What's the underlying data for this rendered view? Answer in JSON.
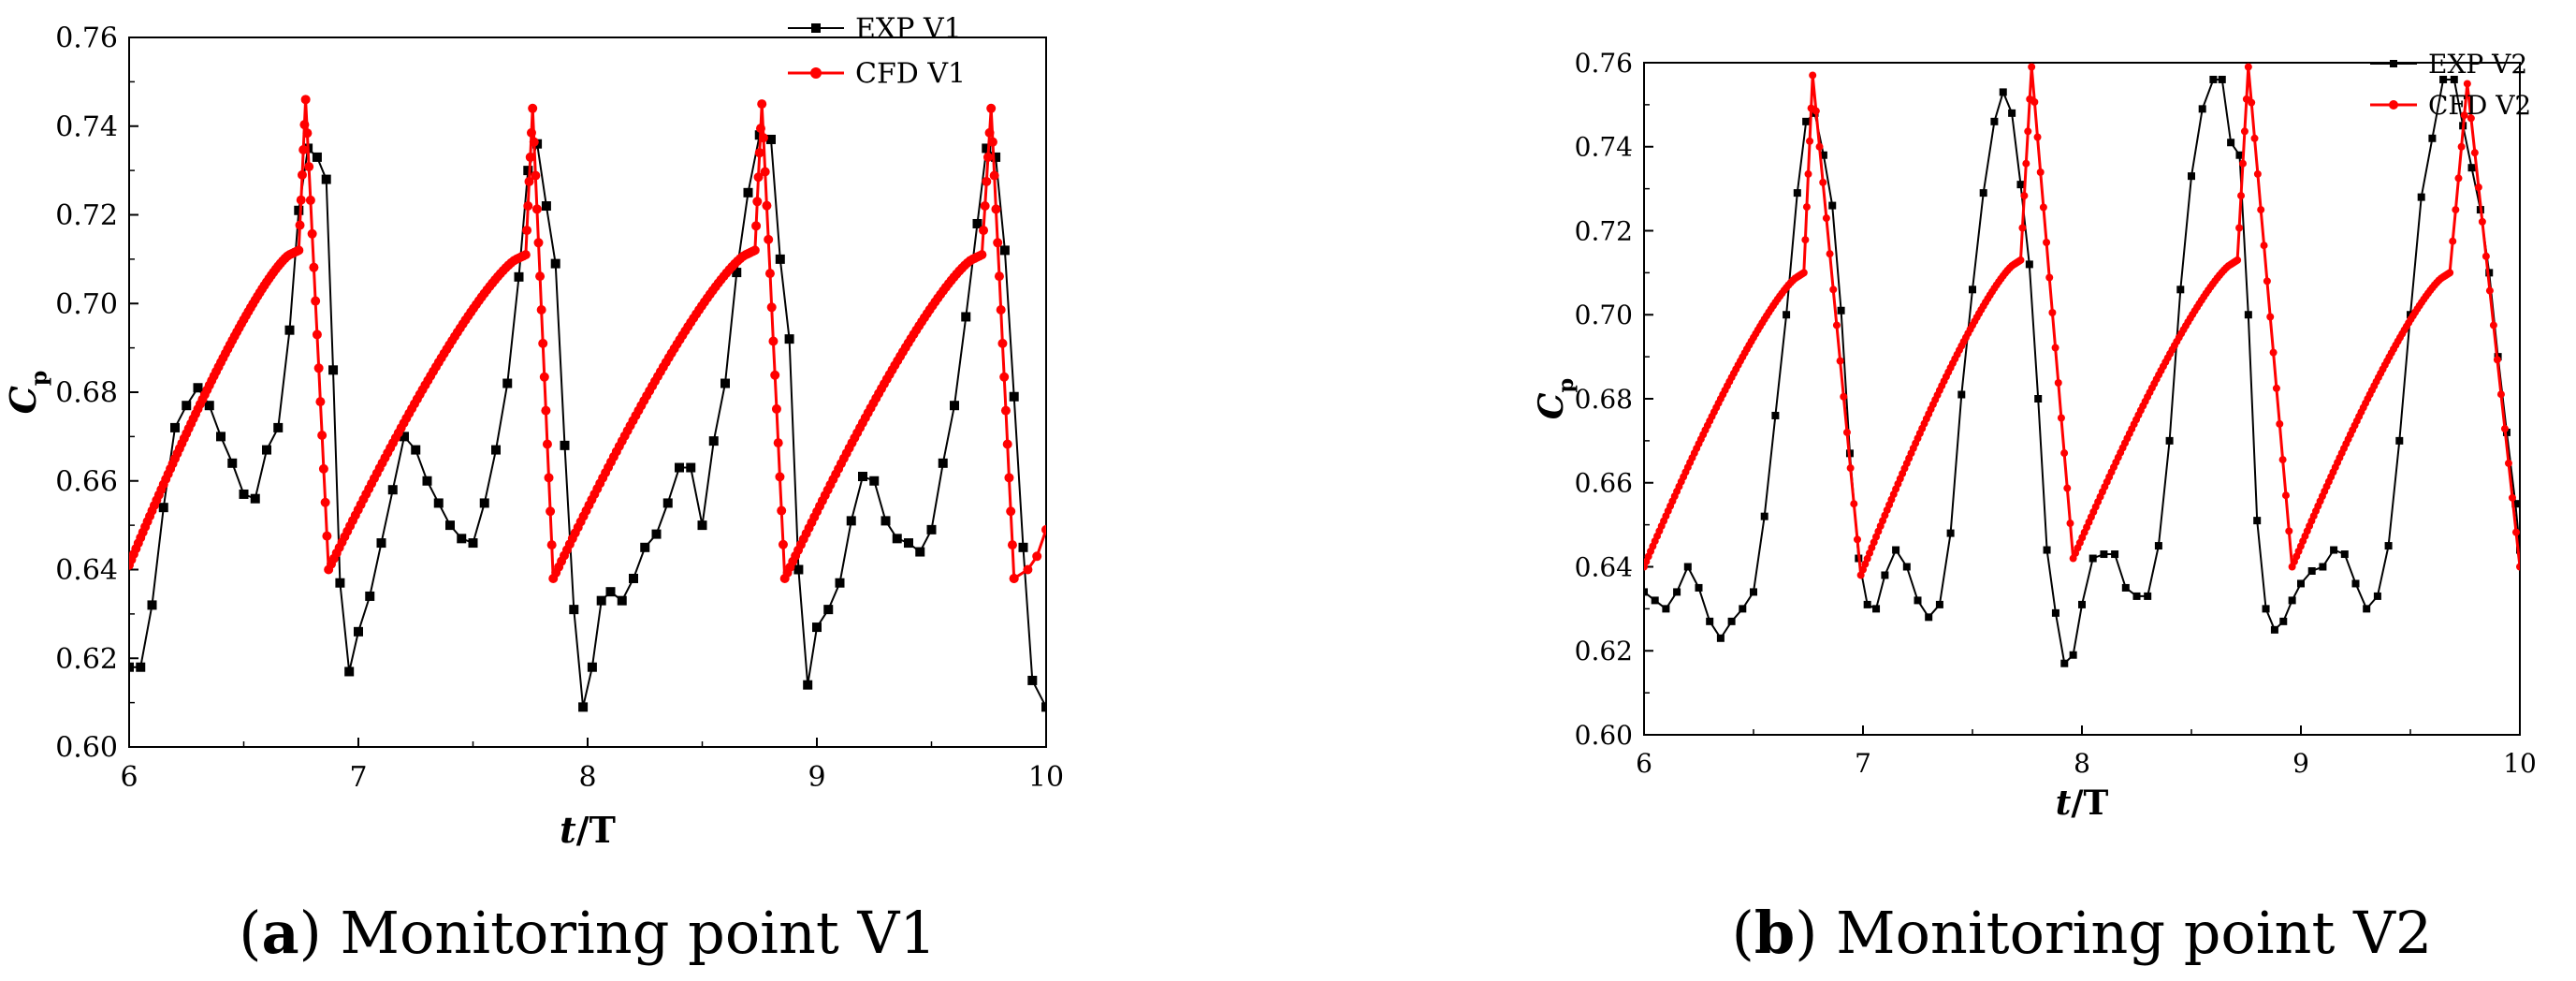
{
  "chart_data": [
    {
      "type": "line",
      "panel_label": "(a)",
      "title": "Monitoring point V1",
      "xlabel_italic": "t",
      "xlabel_rest": "/T",
      "ylabel_main": "C",
      "ylabel_sub": "p",
      "xlim": [
        6,
        10
      ],
      "ylim": [
        0.6,
        0.76
      ],
      "xticks": [
        6,
        7,
        8,
        9,
        10
      ],
      "yticks": [
        0.6,
        0.62,
        0.64,
        0.66,
        0.68,
        0.7,
        0.72,
        0.74,
        0.76
      ],
      "xtick_labels": [
        "6",
        "7",
        "8",
        "9",
        "10"
      ],
      "ytick_labels": [
        "0.60",
        "0.62",
        "0.64",
        "0.66",
        "0.68",
        "0.70",
        "0.72",
        "0.74",
        "0.76"
      ],
      "legend_position": "top-right",
      "series": [
        {
          "name": "EXP V1",
          "color": "#000000",
          "marker": "square",
          "style": "piecewise",
          "points": [
            [
              6.0,
              0.618
            ],
            [
              6.05,
              0.618
            ],
            [
              6.1,
              0.632
            ],
            [
              6.15,
              0.654
            ],
            [
              6.2,
              0.672
            ],
            [
              6.25,
              0.677
            ],
            [
              6.3,
              0.681
            ],
            [
              6.35,
              0.677
            ],
            [
              6.4,
              0.67
            ],
            [
              6.45,
              0.664
            ],
            [
              6.5,
              0.657
            ],
            [
              6.55,
              0.656
            ],
            [
              6.6,
              0.667
            ],
            [
              6.65,
              0.672
            ],
            [
              6.7,
              0.694
            ],
            [
              6.74,
              0.721
            ],
            [
              6.78,
              0.735
            ],
            [
              6.82,
              0.733
            ],
            [
              6.86,
              0.728
            ],
            [
              6.89,
              0.685
            ],
            [
              6.92,
              0.637
            ],
            [
              6.96,
              0.617
            ],
            [
              7.0,
              0.626
            ],
            [
              7.05,
              0.634
            ],
            [
              7.1,
              0.646
            ],
            [
              7.15,
              0.658
            ],
            [
              7.2,
              0.67
            ],
            [
              7.25,
              0.667
            ],
            [
              7.3,
              0.66
            ],
            [
              7.35,
              0.655
            ],
            [
              7.4,
              0.65
            ],
            [
              7.45,
              0.647
            ],
            [
              7.5,
              0.646
            ],
            [
              7.55,
              0.655
            ],
            [
              7.6,
              0.667
            ],
            [
              7.65,
              0.682
            ],
            [
              7.7,
              0.706
            ],
            [
              7.74,
              0.73
            ],
            [
              7.78,
              0.736
            ],
            [
              7.82,
              0.722
            ],
            [
              7.86,
              0.709
            ],
            [
              7.9,
              0.668
            ],
            [
              7.94,
              0.631
            ],
            [
              7.98,
              0.609
            ],
            [
              8.02,
              0.618
            ],
            [
              8.06,
              0.633
            ],
            [
              8.1,
              0.635
            ],
            [
              8.15,
              0.633
            ],
            [
              8.2,
              0.638
            ],
            [
              8.25,
              0.645
            ],
            [
              8.3,
              0.648
            ],
            [
              8.35,
              0.655
            ],
            [
              8.4,
              0.663
            ],
            [
              8.45,
              0.663
            ],
            [
              8.5,
              0.65
            ],
            [
              8.55,
              0.669
            ],
            [
              8.6,
              0.682
            ],
            [
              8.65,
              0.707
            ],
            [
              8.7,
              0.725
            ],
            [
              8.75,
              0.738
            ],
            [
              8.8,
              0.737
            ],
            [
              8.84,
              0.71
            ],
            [
              8.88,
              0.692
            ],
            [
              8.92,
              0.64
            ],
            [
              8.96,
              0.614
            ],
            [
              9.0,
              0.627
            ],
            [
              9.05,
              0.631
            ],
            [
              9.1,
              0.637
            ],
            [
              9.15,
              0.651
            ],
            [
              9.2,
              0.661
            ],
            [
              9.25,
              0.66
            ],
            [
              9.3,
              0.651
            ],
            [
              9.35,
              0.647
            ],
            [
              9.4,
              0.646
            ],
            [
              9.45,
              0.644
            ],
            [
              9.5,
              0.649
            ],
            [
              9.55,
              0.664
            ],
            [
              9.6,
              0.677
            ],
            [
              9.65,
              0.697
            ],
            [
              9.7,
              0.718
            ],
            [
              9.74,
              0.735
            ],
            [
              9.78,
              0.733
            ],
            [
              9.82,
              0.712
            ],
            [
              9.86,
              0.679
            ],
            [
              9.9,
              0.645
            ],
            [
              9.94,
              0.615
            ],
            [
              10.0,
              0.609
            ]
          ]
        },
        {
          "name": "CFD V1",
          "color": "#ff0000",
          "marker": "circle",
          "style": "sawtooth",
          "cycles": [
            {
              "start": 6.0,
              "min": 0.641,
              "rise_end": 6.7,
              "rise_top": 0.711,
              "plateau_end": 6.74,
              "peak_t": 6.77,
              "peak": 0.746,
              "drop_t": 6.87,
              "next_min": 0.64
            },
            {
              "start": 6.87,
              "min": 0.64,
              "rise_end": 7.69,
              "rise_top": 0.71,
              "plateau_end": 7.73,
              "peak_t": 7.76,
              "peak": 0.744,
              "drop_t": 7.85,
              "next_min": 0.638
            },
            {
              "start": 7.85,
              "min": 0.638,
              "rise_end": 8.69,
              "rise_top": 0.711,
              "plateau_end": 8.73,
              "peak_t": 8.76,
              "peak": 0.745,
              "drop_t": 8.86,
              "next_min": 0.638
            },
            {
              "start": 8.86,
              "min": 0.638,
              "rise_end": 9.68,
              "rise_top": 0.71,
              "plateau_end": 9.72,
              "peak_t": 9.76,
              "peak": 0.744,
              "drop_t": 9.86,
              "next_min": 0.638
            }
          ],
          "tail": [
            [
              9.86,
              0.638
            ],
            [
              9.92,
              0.64
            ],
            [
              9.96,
              0.643
            ],
            [
              10.0,
              0.649
            ]
          ]
        }
      ]
    },
    {
      "type": "line",
      "panel_label": "(b)",
      "title": "Monitoring point V2",
      "xlabel_italic": "t",
      "xlabel_rest": "/T",
      "ylabel_main": "C",
      "ylabel_sub": "p",
      "xlim": [
        6,
        10
      ],
      "ylim": [
        0.6,
        0.76
      ],
      "xticks": [
        6,
        7,
        8,
        9,
        10
      ],
      "yticks": [
        0.6,
        0.62,
        0.64,
        0.66,
        0.68,
        0.7,
        0.72,
        0.74,
        0.76
      ],
      "xtick_labels": [
        "6",
        "7",
        "8",
        "9",
        "10"
      ],
      "ytick_labels": [
        "0.60",
        "0.62",
        "0.64",
        "0.66",
        "0.68",
        "0.70",
        "0.72",
        "0.74",
        "0.76"
      ],
      "legend_position": "top-right",
      "series": [
        {
          "name": "EXP V2",
          "color": "#000000",
          "marker": "square",
          "style": "piecewise",
          "points": [
            [
              6.0,
              0.634
            ],
            [
              6.05,
              0.632
            ],
            [
              6.1,
              0.63
            ],
            [
              6.15,
              0.634
            ],
            [
              6.2,
              0.64
            ],
            [
              6.25,
              0.635
            ],
            [
              6.3,
              0.627
            ],
            [
              6.35,
              0.623
            ],
            [
              6.4,
              0.627
            ],
            [
              6.45,
              0.63
            ],
            [
              6.5,
              0.634
            ],
            [
              6.55,
              0.652
            ],
            [
              6.6,
              0.676
            ],
            [
              6.65,
              0.7
            ],
            [
              6.7,
              0.729
            ],
            [
              6.74,
              0.746
            ],
            [
              6.78,
              0.748
            ],
            [
              6.82,
              0.738
            ],
            [
              6.86,
              0.726
            ],
            [
              6.9,
              0.701
            ],
            [
              6.94,
              0.667
            ],
            [
              6.98,
              0.642
            ],
            [
              7.02,
              0.631
            ],
            [
              7.06,
              0.63
            ],
            [
              7.1,
              0.638
            ],
            [
              7.15,
              0.644
            ],
            [
              7.2,
              0.64
            ],
            [
              7.25,
              0.632
            ],
            [
              7.3,
              0.628
            ],
            [
              7.35,
              0.631
            ],
            [
              7.4,
              0.648
            ],
            [
              7.45,
              0.681
            ],
            [
              7.5,
              0.706
            ],
            [
              7.55,
              0.729
            ],
            [
              7.6,
              0.746
            ],
            [
              7.64,
              0.753
            ],
            [
              7.68,
              0.748
            ],
            [
              7.72,
              0.731
            ],
            [
              7.76,
              0.712
            ],
            [
              7.8,
              0.68
            ],
            [
              7.84,
              0.644
            ],
            [
              7.88,
              0.629
            ],
            [
              7.92,
              0.617
            ],
            [
              7.96,
              0.619
            ],
            [
              8.0,
              0.631
            ],
            [
              8.05,
              0.642
            ],
            [
              8.1,
              0.643
            ],
            [
              8.15,
              0.643
            ],
            [
              8.2,
              0.635
            ],
            [
              8.25,
              0.633
            ],
            [
              8.3,
              0.633
            ],
            [
              8.35,
              0.645
            ],
            [
              8.4,
              0.67
            ],
            [
              8.45,
              0.706
            ],
            [
              8.5,
              0.733
            ],
            [
              8.55,
              0.749
            ],
            [
              8.6,
              0.756
            ],
            [
              8.64,
              0.756
            ],
            [
              8.68,
              0.741
            ],
            [
              8.72,
              0.738
            ],
            [
              8.76,
              0.7
            ],
            [
              8.8,
              0.651
            ],
            [
              8.84,
              0.63
            ],
            [
              8.88,
              0.625
            ],
            [
              8.92,
              0.627
            ],
            [
              8.96,
              0.632
            ],
            [
              9.0,
              0.636
            ],
            [
              9.05,
              0.639
            ],
            [
              9.1,
              0.64
            ],
            [
              9.15,
              0.644
            ],
            [
              9.2,
              0.643
            ],
            [
              9.25,
              0.636
            ],
            [
              9.3,
              0.63
            ],
            [
              9.35,
              0.633
            ],
            [
              9.4,
              0.645
            ],
            [
              9.45,
              0.67
            ],
            [
              9.5,
              0.7
            ],
            [
              9.55,
              0.728
            ],
            [
              9.6,
              0.742
            ],
            [
              9.65,
              0.756
            ],
            [
              9.7,
              0.756
            ],
            [
              9.74,
              0.745
            ],
            [
              9.78,
              0.735
            ],
            [
              9.82,
              0.725
            ],
            [
              9.86,
              0.71
            ],
            [
              9.9,
              0.69
            ],
            [
              9.94,
              0.672
            ],
            [
              9.98,
              0.655
            ],
            [
              10.0,
              0.644
            ]
          ]
        },
        {
          "name": "CFD V2",
          "color": "#ff0000",
          "marker": "circle",
          "style": "sawtooth",
          "cycles": [
            {
              "start": 6.0,
              "min": 0.64,
              "rise_end": 6.7,
              "rise_top": 0.709,
              "plateau_end": 6.73,
              "peak_t": 6.77,
              "peak": 0.757,
              "drop_t": 6.99,
              "next_min": 0.638
            },
            {
              "start": 6.99,
              "min": 0.638,
              "rise_end": 7.69,
              "rise_top": 0.712,
              "plateau_end": 7.72,
              "peak_t": 7.77,
              "peak": 0.759,
              "drop_t": 7.96,
              "next_min": 0.642
            },
            {
              "start": 7.96,
              "min": 0.642,
              "rise_end": 8.68,
              "rise_top": 0.712,
              "plateau_end": 8.71,
              "peak_t": 8.76,
              "peak": 0.759,
              "drop_t": 8.96,
              "next_min": 0.64
            },
            {
              "start": 8.96,
              "min": 0.64,
              "rise_end": 9.65,
              "rise_top": 0.709,
              "plateau_end": 9.68,
              "peak_t": 9.76,
              "peak": 0.755,
              "drop_t": 10.0,
              "next_min": 0.64
            }
          ],
          "tail": []
        }
      ]
    }
  ]
}
